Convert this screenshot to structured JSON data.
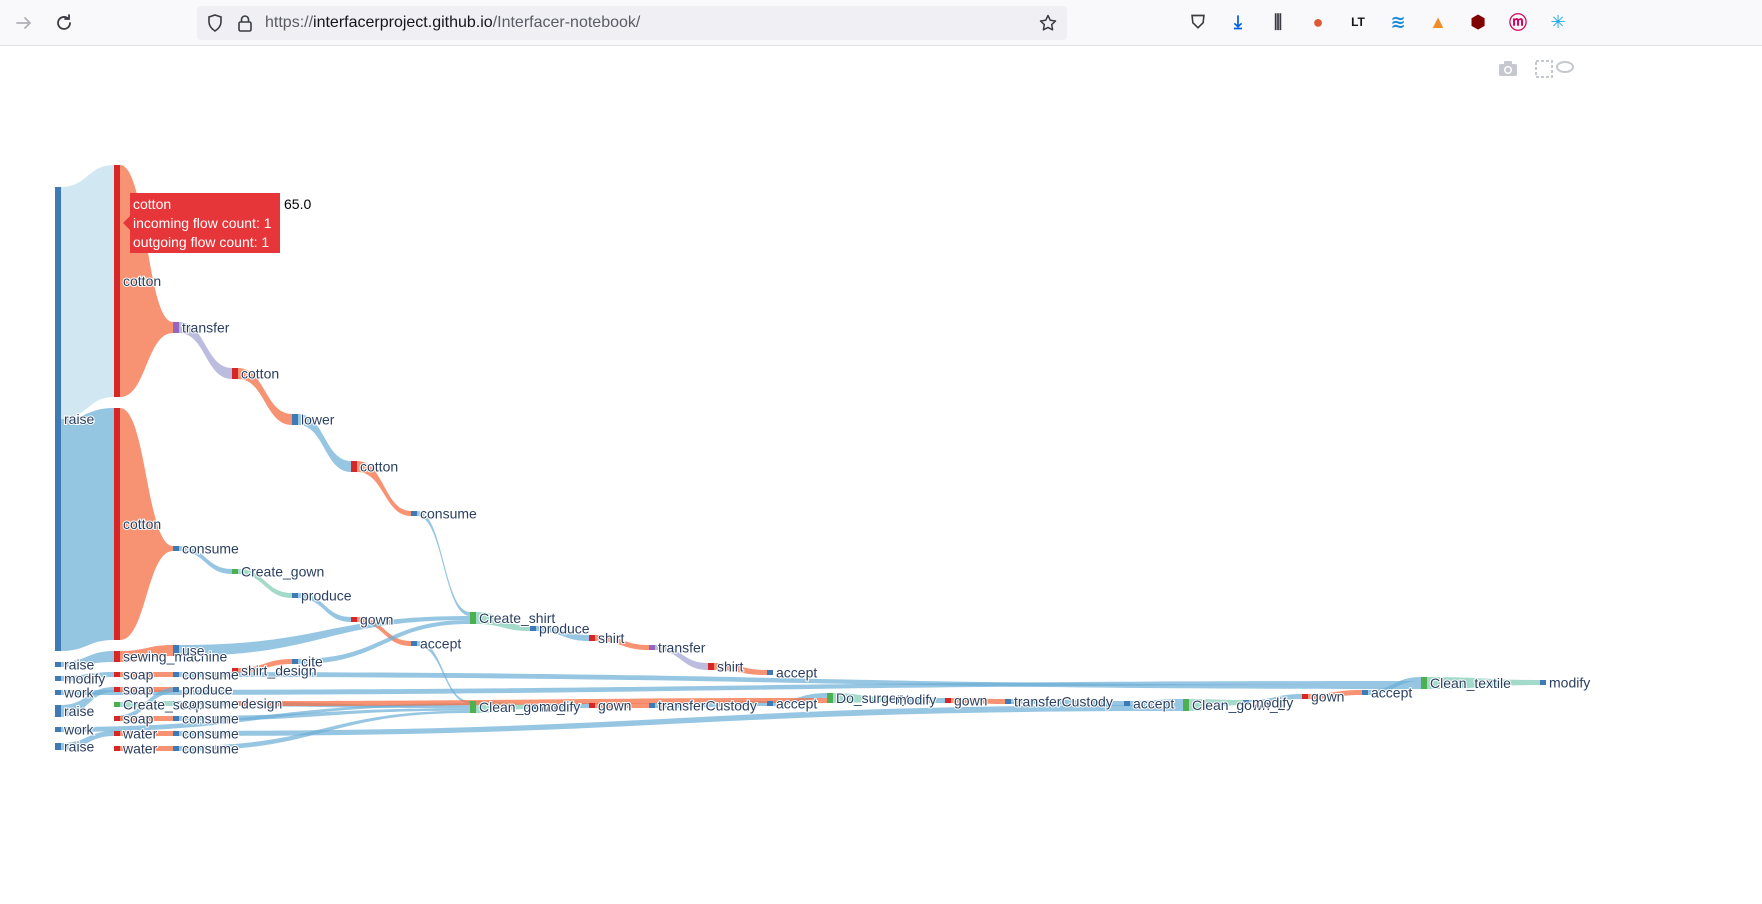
{
  "browser": {
    "url_scheme": "https://",
    "url_host": "interfacerproject.github.io",
    "url_path": "/Interfacer-notebook/",
    "icons": {
      "back": "arrow-right-icon",
      "reload": "reload-icon",
      "shield": "shield-icon",
      "lock": "lock-icon",
      "bookmark": "star-icon"
    },
    "extension_icons": [
      "pocket-icon",
      "download-icon",
      "library-icon",
      "duckduckgo-icon",
      "languagetool-icon",
      "wave-icon",
      "arc-icon",
      "ublock-icon",
      "m-icon",
      "sparkle-icon",
      "fox-icon"
    ]
  },
  "modebar": {
    "icons": [
      "camera-icon",
      "box-select-icon",
      "lasso-icon"
    ]
  },
  "tooltip": {
    "title": "cotton",
    "incoming": "incoming flow count: 1",
    "outgoing": "outgoing flow count: 1",
    "value": "65.0"
  },
  "chart_data": {
    "type": "sankey",
    "nodes": [
      {
        "label": "raise",
        "color": "#3e7bb5"
      },
      {
        "label": "cotton",
        "color": "#d62728"
      },
      {
        "label": "cotton",
        "color": "#d62728"
      },
      {
        "label": "transfer",
        "color": "#9467bd"
      },
      {
        "label": "cotton",
        "color": "#d62728"
      },
      {
        "label": "lower",
        "color": "#3e7bb5"
      },
      {
        "label": "cotton",
        "color": "#d62728"
      },
      {
        "label": "consume",
        "color": "#3e7bb5"
      },
      {
        "label": "consume",
        "color": "#3e7bb5"
      },
      {
        "label": "Create_gown",
        "color": "#4caf50"
      },
      {
        "label": "produce",
        "color": "#3e7bb5"
      },
      {
        "label": "gown",
        "color": "#d62728"
      },
      {
        "label": "accept",
        "color": "#3e7bb5"
      },
      {
        "label": "Create_shirt",
        "color": "#4caf50"
      },
      {
        "label": "produce",
        "color": "#3e7bb5"
      },
      {
        "label": "shirt",
        "color": "#d62728"
      },
      {
        "label": "transfer",
        "color": "#9467bd"
      },
      {
        "label": "shirt",
        "color": "#d62728"
      },
      {
        "label": "accept",
        "color": "#3e7bb5"
      },
      {
        "label": "raise",
        "color": "#3e7bb5"
      },
      {
        "label": "modify",
        "color": "#3e7bb5"
      },
      {
        "label": "work",
        "color": "#3e7bb5"
      },
      {
        "label": "raise",
        "color": "#3e7bb5"
      },
      {
        "label": "work",
        "color": "#3e7bb5"
      },
      {
        "label": "raise",
        "color": "#3e7bb5"
      },
      {
        "label": "sewing_machine",
        "color": "#d62728"
      },
      {
        "label": "use",
        "color": "#3e7bb5"
      },
      {
        "label": "soap",
        "color": "#d62728"
      },
      {
        "label": "consume",
        "color": "#3e7bb5"
      },
      {
        "label": "shirt_design",
        "color": "#d62728"
      },
      {
        "label": "cite",
        "color": "#3e7bb5"
      },
      {
        "label": "soap",
        "color": "#d62728"
      },
      {
        "label": "produce",
        "color": "#3e7bb5"
      },
      {
        "label": "Create_soap",
        "color": "#4caf50"
      },
      {
        "label": "consume",
        "color": "#3e7bb5"
      },
      {
        "label": "design",
        "color": "#d62728"
      },
      {
        "label": "soap",
        "color": "#d62728"
      },
      {
        "label": "consume",
        "color": "#3e7bb5"
      },
      {
        "label": "water",
        "color": "#d62728"
      },
      {
        "label": "consume",
        "color": "#3e7bb5"
      },
      {
        "label": "water",
        "color": "#d62728"
      },
      {
        "label": "consume",
        "color": "#3e7bb5"
      },
      {
        "label": "Clean_gown_1",
        "color": "#4caf50"
      },
      {
        "label": "modify",
        "color": "#3e7bb5"
      },
      {
        "label": "gown",
        "color": "#d62728"
      },
      {
        "label": "transferCustody",
        "color": "#3e7bb5"
      },
      {
        "label": "accept",
        "color": "#3e7bb5"
      },
      {
        "label": "Do_surgery",
        "color": "#4caf50"
      },
      {
        "label": "modify",
        "color": "#3e7bb5"
      },
      {
        "label": "gown",
        "color": "#d62728"
      },
      {
        "label": "transferCustody",
        "color": "#3e7bb5"
      },
      {
        "label": "accept",
        "color": "#3e7bb5"
      },
      {
        "label": "Clean_gown_2",
        "color": "#4caf50"
      },
      {
        "label": "modify",
        "color": "#3e7bb5"
      },
      {
        "label": "gown",
        "color": "#d62728"
      },
      {
        "label": "accept",
        "color": "#3e7bb5"
      },
      {
        "label": "Clean_textile",
        "color": "#4caf50"
      },
      {
        "label": "modify",
        "color": "#3e7bb5"
      }
    ],
    "links": [
      {
        "source": 0,
        "target": 1,
        "value": 65
      },
      {
        "source": 0,
        "target": 2,
        "value": 65
      },
      {
        "source": 1,
        "target": 3,
        "value": 1
      },
      {
        "source": 3,
        "target": 4,
        "value": 1
      },
      {
        "source": 4,
        "target": 5,
        "value": 1
      },
      {
        "source": 5,
        "target": 6,
        "value": 1
      },
      {
        "source": 6,
        "target": 7,
        "value": 1
      },
      {
        "source": 7,
        "target": 13,
        "value": 1
      },
      {
        "source": 2,
        "target": 8,
        "value": 1
      },
      {
        "source": 8,
        "target": 9,
        "value": 1
      },
      {
        "source": 9,
        "target": 10,
        "value": 1
      },
      {
        "source": 10,
        "target": 11,
        "value": 1
      },
      {
        "source": 11,
        "target": 12,
        "value": 1
      },
      {
        "source": 12,
        "target": 42,
        "value": 1
      },
      {
        "source": 13,
        "target": 14,
        "value": 1
      },
      {
        "source": 14,
        "target": 15,
        "value": 1
      },
      {
        "source": 15,
        "target": 16,
        "value": 1
      },
      {
        "source": 16,
        "target": 17,
        "value": 1
      },
      {
        "source": 17,
        "target": 18,
        "value": 1
      },
      {
        "source": 25,
        "target": 26,
        "value": 1
      },
      {
        "source": 26,
        "target": 13,
        "value": 1
      },
      {
        "source": 29,
        "target": 30,
        "value": 1
      },
      {
        "source": 30,
        "target": 13,
        "value": 1
      },
      {
        "source": 42,
        "target": 43,
        "value": 1
      },
      {
        "source": 43,
        "target": 44,
        "value": 1
      },
      {
        "source": 44,
        "target": 45,
        "value": 1
      },
      {
        "source": 45,
        "target": 46,
        "value": 1
      },
      {
        "source": 46,
        "target": 47,
        "value": 1
      },
      {
        "source": 47,
        "target": 48,
        "value": 1
      },
      {
        "source": 48,
        "target": 49,
        "value": 1
      },
      {
        "source": 49,
        "target": 50,
        "value": 1
      },
      {
        "source": 50,
        "target": 51,
        "value": 1
      },
      {
        "source": 51,
        "target": 52,
        "value": 1
      },
      {
        "source": 52,
        "target": 53,
        "value": 1
      },
      {
        "source": 53,
        "target": 54,
        "value": 1
      },
      {
        "source": 54,
        "target": 55,
        "value": 1
      },
      {
        "source": 55,
        "target": 56,
        "value": 1
      },
      {
        "source": 56,
        "target": 57,
        "value": 1
      },
      {
        "source": 19,
        "target": 25,
        "value": 1
      },
      {
        "source": 20,
        "target": 27,
        "value": 1
      },
      {
        "source": 21,
        "target": 56,
        "value": 1
      },
      {
        "source": 22,
        "target": 31,
        "value": 1
      },
      {
        "source": 23,
        "target": 42,
        "value": 1
      },
      {
        "source": 24,
        "target": 38,
        "value": 1
      },
      {
        "source": 27,
        "target": 28,
        "value": 1
      },
      {
        "source": 28,
        "target": 56,
        "value": 1
      },
      {
        "source": 31,
        "target": 32,
        "value": 1
      },
      {
        "source": 32,
        "target": 36,
        "value": 1
      },
      {
        "source": 33,
        "target": 34,
        "value": 1
      },
      {
        "source": 34,
        "target": 42,
        "value": 1
      },
      {
        "source": 35,
        "target": 47,
        "value": 1
      },
      {
        "source": 36,
        "target": 37,
        "value": 1
      },
      {
        "source": 37,
        "target": 42,
        "value": 1
      },
      {
        "source": 38,
        "target": 39,
        "value": 1
      },
      {
        "source": 39,
        "target": 52,
        "value": 1
      },
      {
        "source": 40,
        "target": 41,
        "value": 1
      },
      {
        "source": 41,
        "target": 42,
        "value": 1
      }
    ]
  }
}
